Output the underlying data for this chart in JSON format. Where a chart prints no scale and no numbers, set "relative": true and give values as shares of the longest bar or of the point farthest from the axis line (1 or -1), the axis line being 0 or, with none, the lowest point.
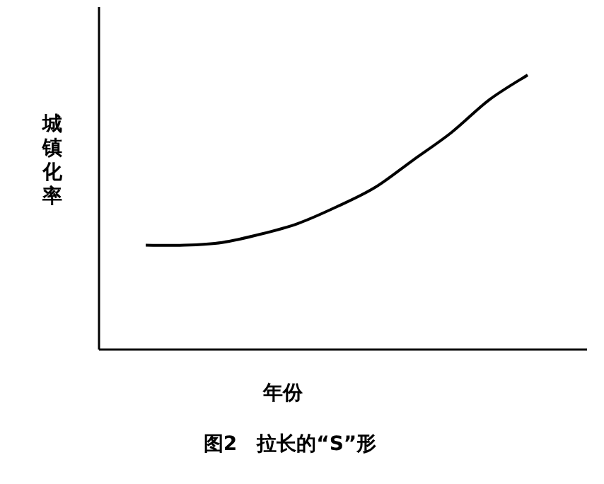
{
  "chart_data": {
    "type": "line",
    "title": "图2　拉长的“S”形",
    "xlabel": "年份",
    "ylabel": "城镇化率",
    "relative": true,
    "categories": [
      null,
      null,
      null,
      null,
      null,
      null,
      null,
      null,
      null,
      null,
      null
    ],
    "series": [
      {
        "color": "#000000",
        "values": [
          0.38,
          0.38,
          0.39,
          0.42,
          0.46,
          0.52,
          0.59,
          0.69,
          0.79,
          0.91,
          1.0
        ]
      }
    ]
  }
}
